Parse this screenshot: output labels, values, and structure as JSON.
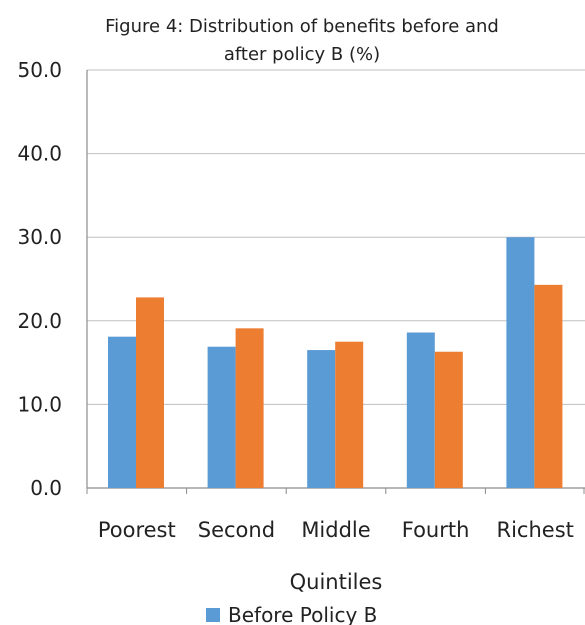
{
  "chart_data": {
    "type": "bar",
    "title_lines": [
      "Figure 4: Distribution of benefits before and",
      "after policy B (%)"
    ],
    "categories": [
      "Poorest",
      "Second",
      "Middle",
      "Fourth",
      "Richest"
    ],
    "series": [
      {
        "name": "Before Policy B",
        "values": [
          18.1,
          16.9,
          16.5,
          18.6,
          30.0
        ],
        "color": "#5B9BD5"
      },
      {
        "values": [
          22.8,
          19.1,
          17.5,
          16.3,
          24.3
        ],
        "color": "#ED7D31"
      }
    ],
    "xlabel": "Quintiles",
    "ylabel": "",
    "ylim": [
      0,
      50
    ],
    "ytick_labels": [
      "0.0",
      "10.0",
      "20.0",
      "30.0",
      "40.0",
      "50.0"
    ],
    "grid": true,
    "legend_placement": "bottom-center"
  }
}
